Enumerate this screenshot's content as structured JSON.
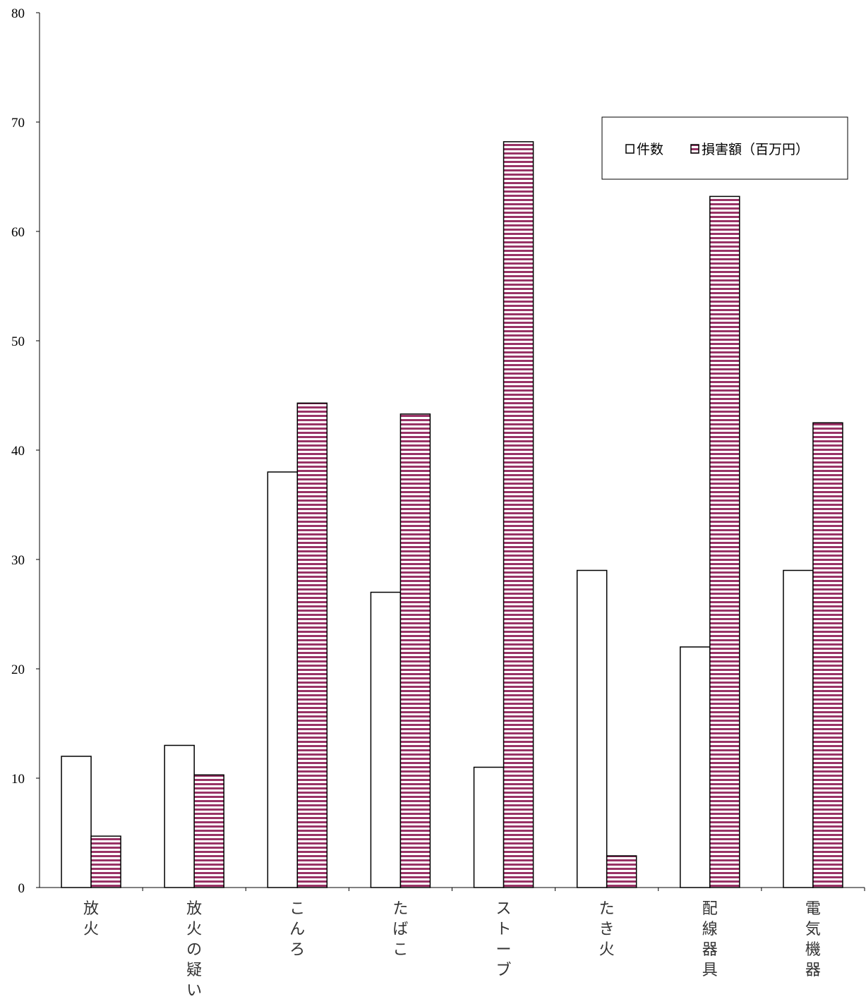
{
  "chart_data": {
    "type": "bar",
    "categories": [
      "放火",
      "放火の疑い",
      "こんろ",
      "たばこ",
      "ストーブ",
      "たき火",
      "配線器具",
      "電気機器"
    ],
    "series": [
      {
        "name": "件数",
        "values": [
          12,
          13,
          38,
          27,
          11,
          29,
          22,
          29
        ],
        "fill": "#ffffff",
        "pattern": "none"
      },
      {
        "name": "損害額（百万円）",
        "values": [
          4.7,
          10.3,
          44.3,
          43.3,
          68.2,
          2.9,
          63.2,
          42.5
        ],
        "fill": "#993366",
        "pattern": "horizontal-stripes"
      }
    ],
    "yticks": [
      0,
      10,
      20,
      30,
      40,
      50,
      60,
      70,
      80
    ],
    "ylim": [
      0,
      80
    ],
    "grid": false,
    "legend_position": "top-right",
    "colors": {
      "stripe": "#993366",
      "axis": "#000000",
      "bar_outline": "#000000"
    }
  }
}
